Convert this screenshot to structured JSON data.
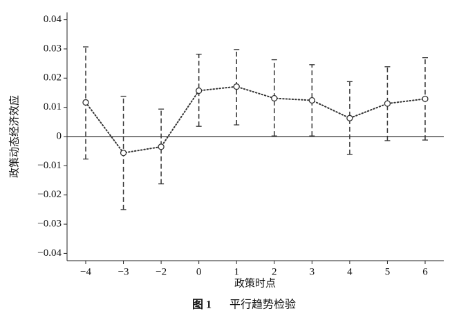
{
  "chart_data": {
    "type": "errorbar",
    "y_label": "政策动态经济效应",
    "x_label": "政策时点",
    "caption_label": "图 1",
    "caption_text": "平行趋势检验",
    "categories": [
      "−4",
      "−3",
      "−2",
      "0",
      "1",
      "2",
      "3",
      "4",
      "5",
      "6"
    ],
    "values": [
      0.0117,
      -0.0056,
      -0.0035,
      0.0157,
      0.0171,
      0.0131,
      0.0124,
      0.0063,
      0.0113,
      0.0129
    ],
    "ci_lower": [
      -0.0077,
      -0.025,
      -0.0162,
      0.0035,
      0.004,
      0.0002,
      0.0002,
      -0.0061,
      -0.0014,
      -0.0012
    ],
    "ci_upper": [
      0.0307,
      0.0138,
      0.0094,
      0.0282,
      0.0298,
      0.0263,
      0.0246,
      0.0188,
      0.0239,
      0.027
    ],
    "color": "#333333",
    "reference_line": 0,
    "ylim": [
      -0.0425,
      0.0425
    ],
    "yticks": [
      {
        "value": -0.04,
        "label": "−0.04"
      },
      {
        "value": -0.03,
        "label": "−0.03"
      },
      {
        "value": -0.02,
        "label": "−0.02"
      },
      {
        "value": -0.01,
        "label": "−0.01"
      },
      0,
      0.01,
      0.02,
      0.03,
      0.04
    ]
  }
}
